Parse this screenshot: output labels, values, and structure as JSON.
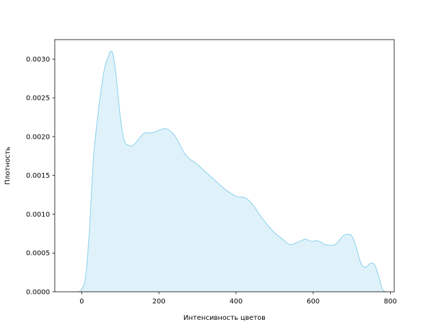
{
  "chart_data": {
    "type": "area",
    "title": "",
    "xlabel": "Интенсивность цветов",
    "ylabel": "Плотность",
    "xlim": [
      -70,
      810
    ],
    "ylim": [
      0,
      0.00325
    ],
    "xticks": [
      0,
      200,
      400,
      600,
      800
    ],
    "xtick_labels": [
      "0",
      "200",
      "400",
      "600",
      "800"
    ],
    "yticks": [
      0,
      0.0005,
      0.001,
      0.0015,
      0.002,
      0.0025,
      0.003
    ],
    "ytick_labels": [
      "0.0000",
      "0.0005",
      "0.0010",
      "0.0015",
      "0.0020",
      "0.0025",
      "0.0030"
    ],
    "grid": false,
    "legend": "none",
    "colors": {
      "line": "#87ceeb",
      "fill": "#87ceeb",
      "fill_opacity": 0.27
    },
    "series": [
      {
        "x": [
          -10,
          0,
          10,
          20,
          30,
          40,
          50,
          60,
          70,
          75,
          80,
          85,
          90,
          100,
          110,
          120,
          130,
          140,
          150,
          160,
          170,
          180,
          190,
          200,
          210,
          220,
          230,
          240,
          250,
          260,
          270,
          280,
          290,
          300,
          320,
          340,
          360,
          380,
          400,
          410,
          420,
          430,
          440,
          450,
          460,
          480,
          500,
          520,
          540,
          560,
          570,
          580,
          590,
          600,
          610,
          620,
          630,
          640,
          650,
          660,
          670,
          680,
          690,
          700,
          710,
          720,
          730,
          740,
          750,
          760,
          770,
          780,
          790
        ],
        "values": [
          0,
          3e-05,
          0.0002,
          0.0008,
          0.0017,
          0.0022,
          0.0026,
          0.0029,
          0.00305,
          0.0031,
          0.00308,
          0.00295,
          0.00275,
          0.00225,
          0.00195,
          0.00189,
          0.00188,
          0.00192,
          0.00198,
          0.00204,
          0.00205,
          0.00205,
          0.00206,
          0.00208,
          0.0021,
          0.0021,
          0.00207,
          0.00202,
          0.00194,
          0.00184,
          0.00176,
          0.00171,
          0.00168,
          0.00164,
          0.00155,
          0.00146,
          0.00137,
          0.00129,
          0.00123,
          0.00122,
          0.00122,
          0.00119,
          0.00114,
          0.00108,
          0.001,
          0.00087,
          0.00076,
          0.00068,
          0.00061,
          0.00064,
          0.00066,
          0.00068,
          0.00066,
          0.00065,
          0.00066,
          0.00064,
          0.00061,
          0.0006,
          0.0006,
          0.00062,
          0.00068,
          0.00073,
          0.00074,
          0.00072,
          0.0006,
          0.00042,
          0.00032,
          0.00033,
          0.00037,
          0.00034,
          0.0002,
          3e-05,
          0
        ]
      }
    ]
  }
}
